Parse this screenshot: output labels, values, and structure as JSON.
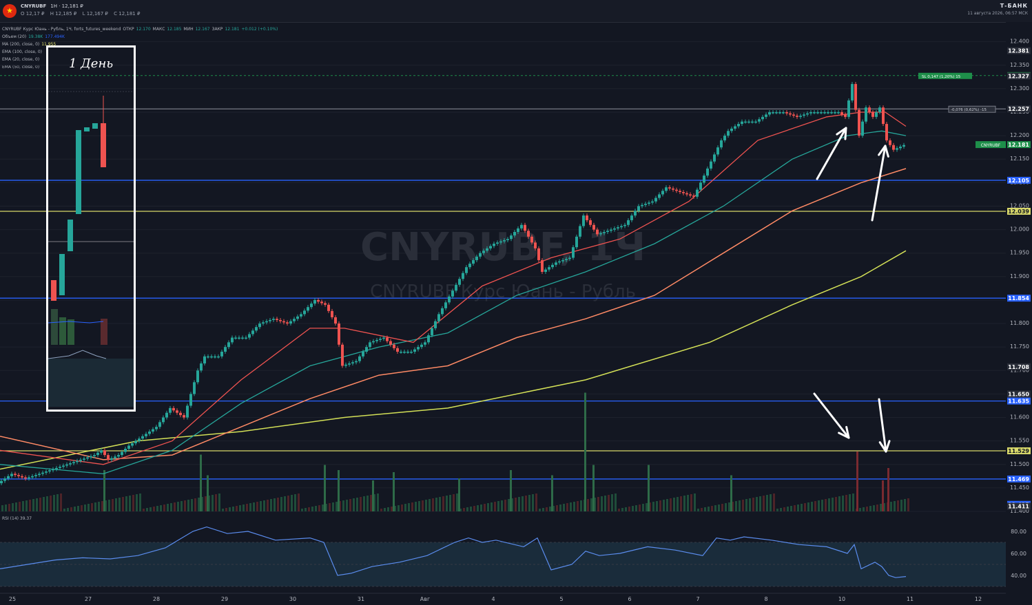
{
  "header": {
    "symbol": "CNYRUBF",
    "interval": "1H",
    "last_price": "12,181 ₽",
    "open": "O 12,17 ₽",
    "high": "H 12,185 ₽",
    "low": "L 12,167 ₽",
    "close": "C 12,181 ₽",
    "brand": "Т-БАНК",
    "datetime": "11 августа 2026, 06:57 МСК"
  },
  "legend": {
    "title": "CNYRUBF Курс Юань - Рубль, 1Ч, forts_futures_weekend",
    "open_label": "ОТКР",
    "open_value": "12.170",
    "high_label": "МАКС",
    "high_value": "12.185",
    "low_label": "МИН",
    "low_value": "12.167",
    "close_label": "ЗАКР",
    "close_value": "12.181",
    "change": "+0.012 (+0.10%)",
    "volume_label": "Объем (20)",
    "volume_value": "19.38K",
    "volume_ma": "177.494K",
    "ma200_label": "MA (200, close, 0)",
    "ma200_value": "11.955",
    "ema100_label": "EMA (100, close, 0)",
    "ema20_label": "EMA (20, close, 0)",
    "ema50_label": "EMA (50, close, 0)",
    "rsi_label": "RSI (14)",
    "rsi_value": "39.37"
  },
  "watermark": {
    "title": "CNYRUBF, 1Ч",
    "subtitle": "CNYRUBF Курс Юань - Рубль"
  },
  "annotation": {
    "label": "1 День"
  },
  "price_labels": [
    {
      "value": "12.381",
      "color": "#2a2e39"
    },
    {
      "value": "12.328",
      "color": "#1e8f4a"
    },
    {
      "value": "12.327",
      "color": "#2a2e39"
    },
    {
      "value": "12.257",
      "color": "#2a2e39"
    },
    {
      "value": "12.181",
      "color": "#1e8f4a"
    },
    {
      "value": "12.105",
      "color": "#2962ff"
    },
    {
      "value": "12.039",
      "color": "#d8d86a"
    },
    {
      "value": "11.854",
      "color": "#2962ff"
    },
    {
      "value": "11.708",
      "color": "#2a2e39"
    },
    {
      "value": "11.650",
      "color": "#2a2e39"
    },
    {
      "value": "11.635",
      "color": "#2962ff"
    },
    {
      "value": "11.529",
      "color": "#d8d86a"
    },
    {
      "value": "11.469",
      "color": "#2962ff"
    },
    {
      "value": "11.415",
      "color": "#2962ff"
    },
    {
      "value": "11.411",
      "color": "#2a2e39"
    }
  ],
  "tags": {
    "symbol_tag": "CNYRUBF",
    "sl_tag": "SL 0,147 (1,20%)",
    "sl_qty": "15",
    "diff_tag": "-0,076 (0,62%)",
    "diff_qty": "-15"
  },
  "chart_data": {
    "type": "candlestick",
    "interval": "1H",
    "y_ticks": [
      "12.400",
      "12.350",
      "12.300",
      "12.250",
      "12.200",
      "12.150",
      "12.100",
      "12.050",
      "12.000",
      "11.950",
      "11.900",
      "11.850",
      "11.800",
      "11.750",
      "11.700",
      "11.650",
      "11.600",
      "11.550",
      "11.500",
      "11.450",
      "11.400"
    ],
    "ylim": [
      11.4,
      12.42
    ],
    "x_ticks": [
      "25",
      "27",
      "28",
      "29",
      "30",
      "31",
      "Авг",
      "4",
      "5",
      "6",
      "7",
      "8",
      "10",
      "11",
      "12"
    ],
    "rsi_ticks": [
      "80.00",
      "60.00",
      "40.00"
    ],
    "horizontal_levels": [
      {
        "value": 12.105,
        "color": "#2962ff"
      },
      {
        "value": 12.039,
        "color": "#d8d86a"
      },
      {
        "value": 11.854,
        "color": "#2962ff"
      },
      {
        "value": 11.635,
        "color": "#2962ff"
      },
      {
        "value": 11.529,
        "color": "#d8d86a"
      },
      {
        "value": 11.469,
        "color": "#2962ff"
      },
      {
        "value": 12.257,
        "color": "#787b86"
      }
    ],
    "price_path": [
      [
        0,
        11.46
      ],
      [
        20,
        11.48
      ],
      [
        40,
        11.47
      ],
      [
        60,
        11.48
      ],
      [
        80,
        11.49
      ],
      [
        100,
        11.5
      ],
      [
        120,
        11.51
      ],
      [
        140,
        11.52
      ],
      [
        150,
        11.53
      ],
      [
        160,
        11.51
      ],
      [
        175,
        11.52
      ],
      [
        190,
        11.54
      ],
      [
        210,
        11.56
      ],
      [
        230,
        11.58
      ],
      [
        250,
        11.62
      ],
      [
        270,
        11.6
      ],
      [
        290,
        11.7
      ],
      [
        300,
        11.73
      ],
      [
        320,
        11.73
      ],
      [
        340,
        11.77
      ],
      [
        360,
        11.77
      ],
      [
        380,
        11.8
      ],
      [
        400,
        11.81
      ],
      [
        420,
        11.8
      ],
      [
        440,
        11.82
      ],
      [
        460,
        11.85
      ],
      [
        475,
        11.84
      ],
      [
        490,
        11.8
      ],
      [
        500,
        11.71
      ],
      [
        520,
        11.72
      ],
      [
        540,
        11.76
      ],
      [
        560,
        11.77
      ],
      [
        580,
        11.74
      ],
      [
        600,
        11.74
      ],
      [
        620,
        11.76
      ],
      [
        640,
        11.82
      ],
      [
        660,
        11.87
      ],
      [
        680,
        11.92
      ],
      [
        700,
        11.95
      ],
      [
        720,
        11.97
      ],
      [
        740,
        11.98
      ],
      [
        760,
        12.01
      ],
      [
        780,
        11.96
      ],
      [
        790,
        11.91
      ],
      [
        810,
        11.93
      ],
      [
        830,
        11.94
      ],
      [
        850,
        12.03
      ],
      [
        870,
        11.99
      ],
      [
        890,
        12.0
      ],
      [
        910,
        12.01
      ],
      [
        930,
        12.05
      ],
      [
        950,
        12.06
      ],
      [
        970,
        12.09
      ],
      [
        990,
        12.08
      ],
      [
        1010,
        12.07
      ],
      [
        1030,
        12.13
      ],
      [
        1050,
        12.19
      ],
      [
        1060,
        12.21
      ],
      [
        1080,
        12.23
      ],
      [
        1100,
        12.23
      ],
      [
        1120,
        12.25
      ],
      [
        1140,
        12.25
      ],
      [
        1160,
        12.24
      ],
      [
        1180,
        12.25
      ],
      [
        1200,
        12.25
      ],
      [
        1220,
        12.25
      ],
      [
        1230,
        12.24
      ],
      [
        1240,
        12.31
      ],
      [
        1250,
        12.2
      ],
      [
        1260,
        12.26
      ],
      [
        1270,
        12.24
      ],
      [
        1280,
        12.26
      ],
      [
        1290,
        12.19
      ],
      [
        1300,
        12.17
      ],
      [
        1315,
        12.18
      ]
    ],
    "ema20_path": [
      [
        0,
        11.53
      ],
      [
        150,
        11.5
      ],
      [
        250,
        11.55
      ],
      [
        350,
        11.68
      ],
      [
        450,
        11.79
      ],
      [
        500,
        11.79
      ],
      [
        600,
        11.76
      ],
      [
        700,
        11.88
      ],
      [
        800,
        11.94
      ],
      [
        900,
        11.98
      ],
      [
        1000,
        12.06
      ],
      [
        1100,
        12.19
      ],
      [
        1200,
        12.24
      ],
      [
        1250,
        12.25
      ],
      [
        1285,
        12.25
      ],
      [
        1315,
        12.22
      ]
    ],
    "ema50_path": [
      [
        0,
        11.5
      ],
      [
        150,
        11.48
      ],
      [
        250,
        11.53
      ],
      [
        350,
        11.63
      ],
      [
        450,
        11.71
      ],
      [
        550,
        11.75
      ],
      [
        650,
        11.78
      ],
      [
        750,
        11.86
      ],
      [
        850,
        11.91
      ],
      [
        950,
        11.97
      ],
      [
        1050,
        12.05
      ],
      [
        1150,
        12.15
      ],
      [
        1230,
        12.2
      ],
      [
        1280,
        12.21
      ],
      [
        1315,
        12.2
      ]
    ],
    "ema100_path": [
      [
        0,
        11.56
      ],
      [
        150,
        11.51
      ],
      [
        250,
        11.52
      ],
      [
        350,
        11.58
      ],
      [
        450,
        11.64
      ],
      [
        550,
        11.69
      ],
      [
        650,
        11.71
      ],
      [
        750,
        11.77
      ],
      [
        850,
        11.81
      ],
      [
        950,
        11.86
      ],
      [
        1050,
        11.95
      ],
      [
        1150,
        12.04
      ],
      [
        1250,
        12.1
      ],
      [
        1315,
        12.13
      ]
    ],
    "ma200_path": [
      [
        0,
        11.49
      ],
      [
        200,
        11.55
      ],
      [
        350,
        11.57
      ],
      [
        500,
        11.6
      ],
      [
        650,
        11.62
      ],
      [
        850,
        11.68
      ],
      [
        1030,
        11.76
      ],
      [
        1150,
        11.84
      ],
      [
        1250,
        11.9
      ],
      [
        1315,
        11.955
      ]
    ],
    "rsi_path": [
      [
        0,
        46
      ],
      [
        40,
        50
      ],
      [
        80,
        54
      ],
      [
        120,
        56
      ],
      [
        160,
        55
      ],
      [
        200,
        58
      ],
      [
        240,
        65
      ],
      [
        280,
        80
      ],
      [
        300,
        84
      ],
      [
        330,
        78
      ],
      [
        360,
        80
      ],
      [
        400,
        72
      ],
      [
        450,
        74
      ],
      [
        470,
        70
      ],
      [
        490,
        40
      ],
      [
        510,
        42
      ],
      [
        540,
        48
      ],
      [
        580,
        52
      ],
      [
        620,
        58
      ],
      [
        640,
        64
      ],
      [
        660,
        70
      ],
      [
        680,
        74
      ],
      [
        700,
        70
      ],
      [
        720,
        72
      ],
      [
        760,
        66
      ],
      [
        780,
        74
      ],
      [
        800,
        45
      ],
      [
        830,
        50
      ],
      [
        850,
        62
      ],
      [
        870,
        58
      ],
      [
        900,
        60
      ],
      [
        940,
        66
      ],
      [
        980,
        63
      ],
      [
        1020,
        58
      ],
      [
        1040,
        74
      ],
      [
        1060,
        72
      ],
      [
        1080,
        75
      ],
      [
        1120,
        72
      ],
      [
        1160,
        68
      ],
      [
        1200,
        66
      ],
      [
        1230,
        60
      ],
      [
        1240,
        68
      ],
      [
        1250,
        46
      ],
      [
        1270,
        52
      ],
      [
        1280,
        48
      ],
      [
        1290,
        40
      ],
      [
        1300,
        38
      ],
      [
        1315,
        39
      ]
    ],
    "volume_bars": [
      [
        150,
        40
      ],
      [
        290,
        55
      ],
      [
        300,
        35
      ],
      [
        470,
        45
      ],
      [
        490,
        40
      ],
      [
        540,
        30
      ],
      [
        570,
        38
      ],
      [
        665,
        32
      ],
      [
        740,
        40
      ],
      [
        800,
        35
      ],
      [
        848,
        115
      ],
      [
        860,
        45
      ],
      [
        940,
        45
      ],
      [
        1060,
        35
      ],
      [
        1243,
        58
      ],
      [
        1280,
        30
      ],
      [
        1288,
        42
      ]
    ]
  }
}
